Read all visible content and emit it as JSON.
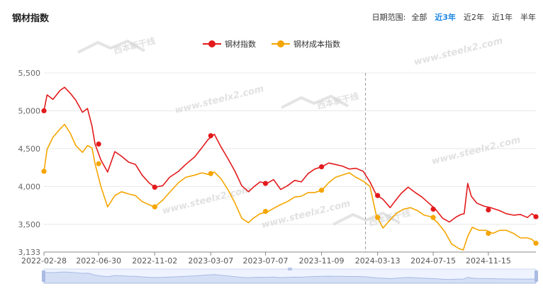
{
  "title": "钢材指数",
  "range_selector": {
    "label": "日期范围:",
    "options": [
      "全部",
      "近3年",
      "近2年",
      "近1年",
      "半年"
    ],
    "active": "近3年"
  },
  "watermark": {
    "text": "www.steelx2.com",
    "logo_text": "西本新干线"
  },
  "chart_data": {
    "type": "line",
    "x_ticks": [
      "2022-02-28",
      "2022-06-30",
      "2022-11-02",
      "2023-03-07",
      "2023-07-07",
      "2023-11-09",
      "2024-03-13",
      "2024-07-15",
      "2024-11-15"
    ],
    "y_ticks": [
      3133,
      3500,
      4000,
      4500,
      5000,
      5500
    ],
    "y_tick_labels": [
      "3,133",
      "3,500",
      "4,000",
      "4,500",
      "5,000",
      "5,500"
    ],
    "ylim": [
      3133,
      5500
    ],
    "xlim": [
      "2022-02-28",
      "2025-03-01"
    ],
    "grid": true,
    "legend_position": "top-center",
    "highlight_date": "2024-02-15",
    "series": [
      {
        "name": "钢材指数",
        "color": "#e31a1c",
        "points": [
          [
            "2022-02-28",
            5000
          ],
          [
            "2022-03-07",
            5210
          ],
          [
            "2022-03-20",
            5150
          ],
          [
            "2022-04-05",
            5270
          ],
          [
            "2022-04-15",
            5310
          ],
          [
            "2022-04-28",
            5230
          ],
          [
            "2022-05-10",
            5140
          ],
          [
            "2022-05-25",
            4980
          ],
          [
            "2022-06-05",
            5030
          ],
          [
            "2022-06-15",
            4800
          ],
          [
            "2022-06-22",
            4560
          ],
          [
            "2022-07-05",
            4350
          ],
          [
            "2022-07-20",
            4190
          ],
          [
            "2022-08-05",
            4460
          ],
          [
            "2022-08-20",
            4400
          ],
          [
            "2022-09-05",
            4320
          ],
          [
            "2022-09-20",
            4290
          ],
          [
            "2022-10-05",
            4150
          ],
          [
            "2022-10-20",
            4050
          ],
          [
            "2022-11-02",
            3990
          ],
          [
            "2022-11-20",
            4010
          ],
          [
            "2022-12-05",
            4120
          ],
          [
            "2022-12-25",
            4200
          ],
          [
            "2023-01-10",
            4290
          ],
          [
            "2023-01-30",
            4390
          ],
          [
            "2023-02-15",
            4510
          ],
          [
            "2023-03-01",
            4620
          ],
          [
            "2023-03-15",
            4690
          ],
          [
            "2023-03-30",
            4520
          ],
          [
            "2023-04-15",
            4360
          ],
          [
            "2023-04-30",
            4200
          ],
          [
            "2023-05-15",
            4010
          ],
          [
            "2023-05-30",
            3930
          ],
          [
            "2023-06-10",
            3990
          ],
          [
            "2023-06-25",
            4060
          ],
          [
            "2023-07-10",
            4040
          ],
          [
            "2023-07-25",
            4090
          ],
          [
            "2023-08-10",
            3960
          ],
          [
            "2023-08-25",
            4010
          ],
          [
            "2023-09-10",
            4080
          ],
          [
            "2023-09-25",
            4060
          ],
          [
            "2023-10-10",
            4170
          ],
          [
            "2023-10-25",
            4230
          ],
          [
            "2023-11-10",
            4260
          ],
          [
            "2023-11-25",
            4310
          ],
          [
            "2023-12-10",
            4290
          ],
          [
            "2023-12-25",
            4270
          ],
          [
            "2024-01-10",
            4230
          ],
          [
            "2024-01-25",
            4240
          ],
          [
            "2024-02-10",
            4200
          ],
          [
            "2024-02-25",
            4060
          ],
          [
            "2024-03-10",
            3890
          ],
          [
            "2024-03-25",
            3830
          ],
          [
            "2024-04-10",
            3720
          ],
          [
            "2024-04-20",
            3800
          ],
          [
            "2024-05-05",
            3910
          ],
          [
            "2024-05-20",
            3990
          ],
          [
            "2024-06-05",
            3920
          ],
          [
            "2024-06-20",
            3860
          ],
          [
            "2024-07-05",
            3780
          ],
          [
            "2024-07-20",
            3700
          ],
          [
            "2024-08-05",
            3580
          ],
          [
            "2024-08-20",
            3530
          ],
          [
            "2024-09-05",
            3600
          ],
          [
            "2024-09-15",
            3630
          ],
          [
            "2024-09-22",
            3640
          ],
          [
            "2024-09-30",
            4040
          ],
          [
            "2024-10-08",
            3870
          ],
          [
            "2024-10-20",
            3780
          ],
          [
            "2024-11-05",
            3740
          ],
          [
            "2024-11-20",
            3720
          ],
          [
            "2024-12-10",
            3680
          ],
          [
            "2024-12-25",
            3640
          ],
          [
            "2025-01-10",
            3620
          ],
          [
            "2025-01-25",
            3630
          ],
          [
            "2025-02-10",
            3590
          ],
          [
            "2025-02-20",
            3640
          ],
          [
            "2025-03-01",
            3600
          ]
        ],
        "markers": [
          [
            "2022-02-28",
            5000
          ],
          [
            "2022-06-30",
            4560
          ],
          [
            "2022-11-02",
            3990
          ],
          [
            "2023-03-07",
            4670
          ],
          [
            "2023-07-07",
            4040
          ],
          [
            "2023-11-09",
            4260
          ],
          [
            "2024-03-13",
            3880
          ],
          [
            "2024-07-15",
            3700
          ],
          [
            "2024-11-15",
            3690
          ],
          [
            "2025-03-01",
            3600
          ]
        ]
      },
      {
        "name": "钢材成本指数",
        "color": "#f5a500",
        "points": [
          [
            "2022-02-28",
            4200
          ],
          [
            "2022-03-07",
            4490
          ],
          [
            "2022-03-20",
            4650
          ],
          [
            "2022-04-05",
            4760
          ],
          [
            "2022-04-15",
            4820
          ],
          [
            "2022-04-28",
            4700
          ],
          [
            "2022-05-10",
            4540
          ],
          [
            "2022-05-25",
            4450
          ],
          [
            "2022-06-05",
            4540
          ],
          [
            "2022-06-15",
            4510
          ],
          [
            "2022-06-22",
            4300
          ],
          [
            "2022-07-05",
            4000
          ],
          [
            "2022-07-20",
            3730
          ],
          [
            "2022-08-05",
            3880
          ],
          [
            "2022-08-20",
            3930
          ],
          [
            "2022-09-05",
            3900
          ],
          [
            "2022-09-20",
            3880
          ],
          [
            "2022-10-05",
            3800
          ],
          [
            "2022-10-20",
            3760
          ],
          [
            "2022-11-02",
            3730
          ],
          [
            "2022-11-20",
            3820
          ],
          [
            "2022-12-05",
            3920
          ],
          [
            "2022-12-25",
            4050
          ],
          [
            "2023-01-10",
            4120
          ],
          [
            "2023-01-30",
            4150
          ],
          [
            "2023-02-15",
            4180
          ],
          [
            "2023-03-01",
            4160
          ],
          [
            "2023-03-15",
            4190
          ],
          [
            "2023-03-30",
            4100
          ],
          [
            "2023-04-15",
            3950
          ],
          [
            "2023-04-30",
            3780
          ],
          [
            "2023-05-15",
            3580
          ],
          [
            "2023-05-30",
            3520
          ],
          [
            "2023-06-10",
            3580
          ],
          [
            "2023-06-25",
            3640
          ],
          [
            "2023-07-10",
            3660
          ],
          [
            "2023-07-25",
            3710
          ],
          [
            "2023-08-10",
            3760
          ],
          [
            "2023-08-25",
            3800
          ],
          [
            "2023-09-10",
            3860
          ],
          [
            "2023-09-25",
            3870
          ],
          [
            "2023-10-10",
            3920
          ],
          [
            "2023-10-25",
            3920
          ],
          [
            "2023-11-10",
            3950
          ],
          [
            "2023-11-25",
            4050
          ],
          [
            "2023-12-10",
            4120
          ],
          [
            "2023-12-25",
            4150
          ],
          [
            "2024-01-10",
            4180
          ],
          [
            "2024-01-25",
            4120
          ],
          [
            "2024-02-10",
            4070
          ],
          [
            "2024-02-25",
            4000
          ],
          [
            "2024-03-10",
            3620
          ],
          [
            "2024-03-25",
            3450
          ],
          [
            "2024-04-10",
            3560
          ],
          [
            "2024-04-25",
            3650
          ],
          [
            "2024-05-10",
            3700
          ],
          [
            "2024-05-25",
            3720
          ],
          [
            "2024-06-10",
            3680
          ],
          [
            "2024-06-25",
            3620
          ],
          [
            "2024-07-10",
            3600
          ],
          [
            "2024-07-25",
            3520
          ],
          [
            "2024-08-10",
            3400
          ],
          [
            "2024-08-25",
            3240
          ],
          [
            "2024-09-10",
            3180
          ],
          [
            "2024-09-20",
            3160
          ],
          [
            "2024-09-30",
            3340
          ],
          [
            "2024-10-10",
            3460
          ],
          [
            "2024-10-25",
            3420
          ],
          [
            "2024-11-10",
            3420
          ],
          [
            "2024-11-25",
            3380
          ],
          [
            "2024-12-10",
            3420
          ],
          [
            "2024-12-25",
            3420
          ],
          [
            "2025-01-10",
            3380
          ],
          [
            "2025-01-25",
            3320
          ],
          [
            "2025-02-10",
            3320
          ],
          [
            "2025-02-20",
            3300
          ],
          [
            "2025-03-01",
            3250
          ]
        ],
        "markers": [
          [
            "2022-02-28",
            4200
          ],
          [
            "2022-06-30",
            4300
          ],
          [
            "2022-11-02",
            3730
          ],
          [
            "2023-03-07",
            4170
          ],
          [
            "2023-07-07",
            3670
          ],
          [
            "2023-11-09",
            3950
          ],
          [
            "2024-03-13",
            3590
          ],
          [
            "2024-07-15",
            3590
          ],
          [
            "2024-11-15",
            3380
          ],
          [
            "2025-03-01",
            3250
          ]
        ]
      }
    ]
  }
}
